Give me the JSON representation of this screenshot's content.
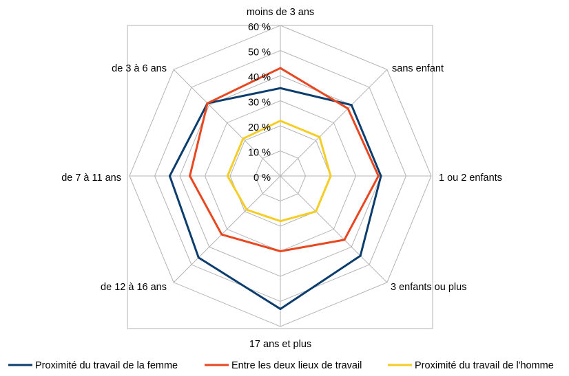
{
  "chart_data": {
    "type": "radar",
    "title": "",
    "categories": [
      "moins de 3 ans",
      "sans enfant",
      "1 ou 2 enfants",
      "3 enfants ou plus",
      "17 ans et plus",
      "de 12 à 16 ans",
      "de 7 à 11 ans",
      "de 3 à 6 ans"
    ],
    "rlim": [
      0,
      60
    ],
    "ticks": [
      0,
      10,
      20,
      30,
      40,
      50,
      60
    ],
    "tick_labels": [
      "0 %",
      "10 %",
      "20 %",
      "30 %",
      "40 %",
      "50 %",
      "60 %"
    ],
    "grid": true,
    "legend_position": "bottom",
    "series": [
      {
        "name": "Proximité du travail de la femme",
        "color": "#0b3d6e",
        "values": [
          35,
          40,
          40,
          45,
          53,
          46,
          44,
          41
        ]
      },
      {
        "name": "Entre les deux lieux de travail",
        "color": "#e8471f",
        "values": [
          43,
          38,
          39,
          36,
          30,
          33,
          36,
          41
        ]
      },
      {
        "name": "Proximité du travail de l'homme",
        "color": "#f5cd26",
        "values": [
          22,
          22,
          20,
          20,
          18,
          19,
          21,
          21
        ]
      }
    ]
  }
}
